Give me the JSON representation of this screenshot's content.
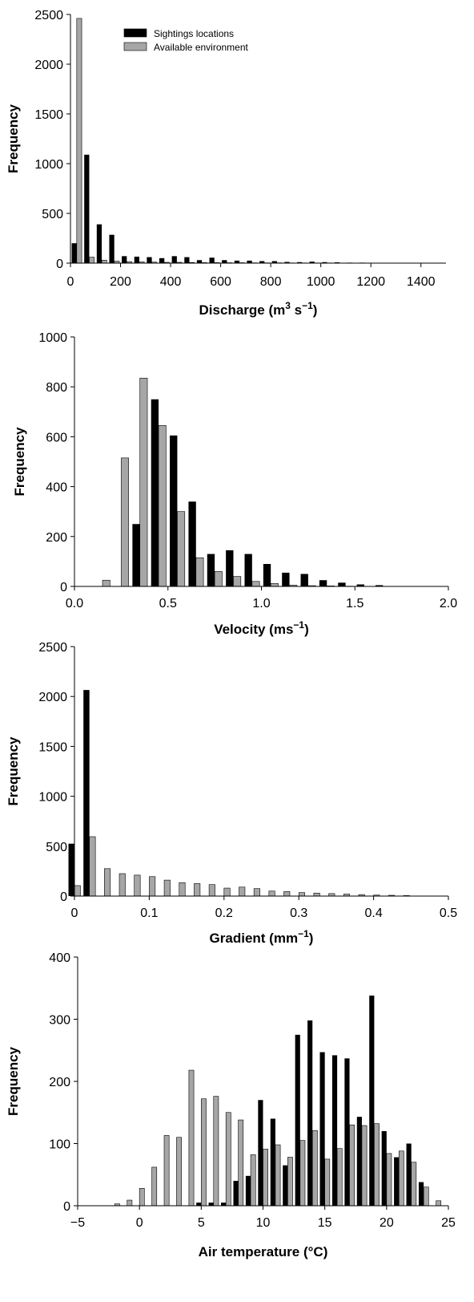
{
  "colors": {
    "sightings": "#000000",
    "available": "#a6a6a6",
    "axis": "#000000"
  },
  "chart_data": [
    {
      "type": "bar",
      "ylabel": "Frequency",
      "xlabel": {
        "pre": "Discharge (m",
        "sup1": "3",
        "mid": " s",
        "sup2": "−1",
        "post": ")"
      },
      "xlim": [
        0,
        1500
      ],
      "ylim": [
        0,
        2500
      ],
      "xticks": [
        0,
        200,
        400,
        600,
        800,
        1000,
        1200,
        1400
      ],
      "yticks": [
        0,
        500,
        1000,
        1500,
        2000,
        2500
      ],
      "bin_width": 50,
      "legend": {
        "position": "top",
        "entries": [
          "Sightings locations",
          "Available environment"
        ]
      },
      "series": [
        {
          "name": "Sightings locations",
          "x": [
            25,
            75,
            125,
            175,
            225,
            275,
            325,
            375,
            425,
            475,
            525,
            575,
            625,
            675,
            725,
            775,
            825,
            875,
            925,
            975,
            1025,
            1075,
            1125,
            1175,
            1225
          ],
          "values": [
            200,
            1090,
            390,
            285,
            70,
            65,
            60,
            50,
            70,
            60,
            30,
            55,
            30,
            25,
            25,
            20,
            20,
            12,
            10,
            15,
            10,
            8,
            5,
            5,
            3
          ]
        },
        {
          "name": "Available environment",
          "x": [
            25,
            75,
            125,
            175,
            225,
            275,
            325,
            375,
            425,
            475,
            525,
            575,
            625,
            675,
            725,
            775,
            825,
            875,
            925,
            975,
            1025,
            1075,
            1125,
            1175,
            1225
          ],
          "values": [
            2460,
            60,
            30,
            20,
            15,
            12,
            10,
            8,
            8,
            6,
            5,
            5,
            4,
            4,
            3,
            3,
            3,
            2,
            2,
            2,
            2,
            1,
            1,
            1,
            1
          ]
        }
      ]
    },
    {
      "type": "bar",
      "ylabel": "Frequency",
      "xlabel": {
        "pre": "Velocity (ms",
        "sup2": "−1",
        "post": ")"
      },
      "xlim": [
        0,
        2
      ],
      "ylim": [
        0,
        1000
      ],
      "xticks": [
        0.0,
        0.5,
        1.0,
        1.5,
        2.0
      ],
      "xtick_labels": [
        "0.0",
        "0.5",
        "1.0",
        "1.5",
        "2.0"
      ],
      "yticks": [
        0,
        200,
        400,
        600,
        800,
        1000
      ],
      "bin_width": 0.1,
      "series": [
        {
          "name": "Sightings locations",
          "x": [
            0.15,
            0.25,
            0.35,
            0.45,
            0.55,
            0.65,
            0.75,
            0.85,
            0.95,
            1.05,
            1.15,
            1.25,
            1.35,
            1.45,
            1.55,
            1.65
          ],
          "values": [
            0,
            0,
            250,
            750,
            605,
            340,
            130,
            145,
            130,
            90,
            55,
            50,
            25,
            15,
            8,
            5
          ]
        },
        {
          "name": "Available environment",
          "x": [
            0.15,
            0.25,
            0.35,
            0.45,
            0.55,
            0.65,
            0.75,
            0.85,
            0.95,
            1.05,
            1.15,
            1.25,
            1.35,
            1.45,
            1.55,
            1.65
          ],
          "values": [
            25,
            515,
            835,
            645,
            300,
            115,
            60,
            40,
            20,
            12,
            5,
            3,
            2,
            1,
            0,
            0
          ]
        }
      ]
    },
    {
      "type": "bar",
      "ylabel": "Frequency",
      "xlabel": {
        "pre": "Gradient (mm",
        "sup2": "−1",
        "post": ")"
      },
      "xlim": [
        0,
        0.5
      ],
      "ylim": [
        0,
        2500
      ],
      "xticks": [
        0,
        0.1,
        0.2,
        0.3,
        0.4,
        0.5
      ],
      "xtick_labels": [
        "0",
        "0.1",
        "0.2",
        "0.3",
        "0.4",
        "0.5"
      ],
      "yticks": [
        0,
        500,
        1000,
        1500,
        2000,
        2500
      ],
      "bin_width": 0.02,
      "series": [
        {
          "name": "Sightings locations",
          "x": [
            0.0,
            0.02
          ],
          "values": [
            525,
            2065
          ]
        },
        {
          "name": "Available environment",
          "x": [
            0.0,
            0.02,
            0.04,
            0.06,
            0.08,
            0.1,
            0.12,
            0.14,
            0.16,
            0.18,
            0.2,
            0.22,
            0.24,
            0.26,
            0.28,
            0.3,
            0.32,
            0.34,
            0.36,
            0.38,
            0.4,
            0.42,
            0.44
          ],
          "values": [
            105,
            595,
            275,
            225,
            210,
            195,
            160,
            135,
            125,
            115,
            80,
            90,
            75,
            50,
            45,
            35,
            30,
            25,
            20,
            15,
            10,
            8,
            5
          ]
        }
      ]
    },
    {
      "type": "bar",
      "ylabel": "Frequency",
      "xlabel": {
        "pre": "Air temperature (°C)"
      },
      "xlim": [
        -5,
        25
      ],
      "ylim": [
        0,
        400
      ],
      "xticks": [
        -5,
        0,
        5,
        10,
        15,
        20,
        25
      ],
      "xtick_labels": [
        "−5",
        "0",
        "5",
        "10",
        "15",
        "20",
        "25"
      ],
      "yticks": [
        0,
        100,
        200,
        300,
        400
      ],
      "bin_width": 1,
      "series": [
        {
          "name": "Sightings locations",
          "x": [
            -2,
            -1,
            0,
            1,
            2,
            3,
            4,
            5,
            6,
            7,
            8,
            9,
            10,
            11,
            12,
            13,
            14,
            15,
            16,
            17,
            18,
            19,
            20,
            21,
            22,
            23,
            24
          ],
          "values": [
            0,
            0,
            0,
            0,
            0,
            0,
            0,
            5,
            5,
            5,
            40,
            48,
            170,
            140,
            65,
            275,
            298,
            247,
            242,
            237,
            143,
            338,
            120,
            78,
            100,
            38,
            0
          ]
        },
        {
          "name": "Available environment",
          "x": [
            -2,
            -1,
            0,
            1,
            2,
            3,
            4,
            5,
            6,
            7,
            8,
            9,
            10,
            11,
            12,
            13,
            14,
            15,
            16,
            17,
            18,
            19,
            20,
            21,
            22,
            23,
            24
          ],
          "values": [
            3,
            9,
            28,
            62,
            113,
            110,
            218,
            172,
            176,
            150,
            138,
            82,
            91,
            98,
            78,
            105,
            121,
            75,
            92,
            130,
            129,
            132,
            84,
            88,
            70,
            30,
            8
          ]
        }
      ]
    }
  ]
}
